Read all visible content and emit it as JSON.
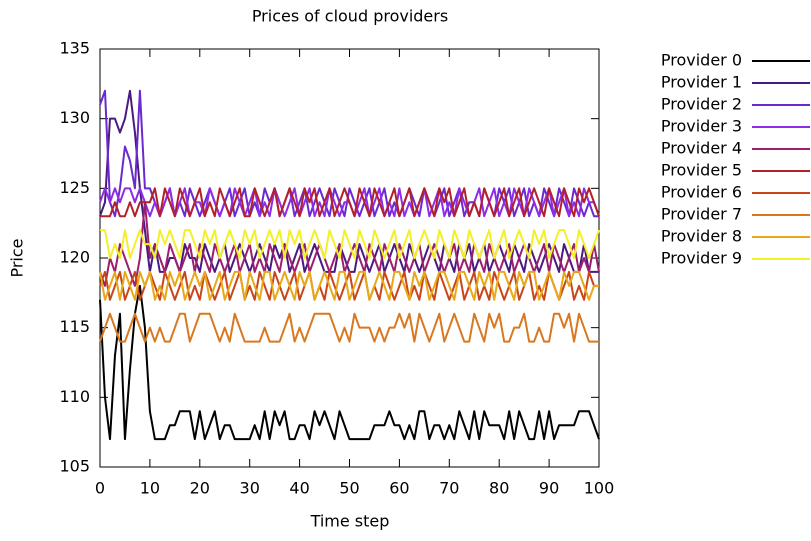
{
  "chart_data": {
    "type": "line",
    "title": "Prices of cloud providers",
    "xlabel": "Time step",
    "ylabel": "Price",
    "xlim": [
      0,
      100
    ],
    "ylim": [
      105,
      135
    ],
    "xticks": [
      0,
      10,
      20,
      30,
      40,
      50,
      60,
      70,
      80,
      90,
      100
    ],
    "yticks": [
      105,
      110,
      115,
      120,
      125,
      130,
      135
    ],
    "legend": "outside-right",
    "x": [
      0,
      1,
      2,
      3,
      4,
      5,
      6,
      7,
      8,
      9,
      10,
      11,
      12,
      13,
      14,
      15,
      16,
      17,
      18,
      19,
      20,
      21,
      22,
      23,
      24,
      25,
      26,
      27,
      28,
      29,
      30,
      31,
      32,
      33,
      34,
      35,
      36,
      37,
      38,
      39,
      40,
      41,
      42,
      43,
      44,
      45,
      46,
      47,
      48,
      49,
      50,
      51,
      52,
      53,
      54,
      55,
      56,
      57,
      58,
      59,
      60,
      61,
      62,
      63,
      64,
      65,
      66,
      67,
      68,
      69,
      70,
      71,
      72,
      73,
      74,
      75,
      76,
      77,
      78,
      79,
      80,
      81,
      82,
      83,
      84,
      85,
      86,
      87,
      88,
      89,
      90,
      91,
      92,
      93,
      94,
      95,
      96,
      97,
      98,
      99,
      100
    ],
    "series": [
      {
        "name": "Provider 0",
        "color": "#000000",
        "values": [
          117,
          110,
          107,
          113,
          116,
          107,
          112,
          116,
          118,
          115,
          109,
          107,
          107,
          107,
          108,
          108,
          109,
          109,
          109,
          107,
          109,
          107,
          108,
          109,
          107,
          108,
          108,
          107,
          107,
          107,
          107,
          108,
          107,
          109,
          107,
          109,
          108,
          109,
          107,
          107,
          108,
          108,
          107,
          109,
          108,
          109,
          108,
          107,
          109,
          108,
          107,
          107,
          107,
          107,
          107,
          108,
          108,
          108,
          109,
          108,
          108,
          107,
          108,
          107,
          109,
          109,
          107,
          108,
          108,
          107,
          108,
          107,
          109,
          108,
          107,
          109,
          107,
          109,
          108,
          108,
          108,
          107,
          109,
          107,
          109,
          108,
          107,
          107,
          109,
          107,
          109,
          107,
          108,
          108,
          108,
          108,
          109,
          109,
          109,
          108,
          107
        ]
      },
      {
        "name": "Provider 1",
        "color": "#4b1a80",
        "values": [
          123,
          124,
          130,
          130,
          129,
          130,
          132,
          129,
          125,
          122,
          119,
          121,
          119,
          119,
          120,
          120,
          119,
          121,
          120,
          120,
          119,
          121,
          120,
          119,
          120,
          121,
          119,
          120,
          121,
          120,
          119,
          120,
          121,
          120,
          119,
          121,
          120,
          121,
          119,
          120,
          121,
          119,
          120,
          121,
          120,
          119,
          119,
          119,
          121,
          120,
          119,
          119,
          121,
          120,
          119,
          120,
          121,
          119,
          120,
          121,
          120,
          119,
          121,
          120,
          119,
          120,
          121,
          120,
          119,
          121,
          120,
          119,
          121,
          120,
          121,
          119,
          120,
          121,
          119,
          120,
          121,
          120,
          119,
          121,
          120,
          119,
          121,
          120,
          119,
          120,
          121,
          120,
          119,
          121,
          120,
          119,
          119,
          121,
          119,
          119,
          119
        ]
      },
      {
        "name": "Provider 2",
        "color": "#6a2ad0",
        "values": [
          131,
          132,
          124,
          123,
          125,
          128,
          127,
          125,
          132,
          125,
          125,
          124,
          123,
          124,
          125,
          123,
          124,
          123,
          125,
          124,
          123,
          124,
          125,
          124,
          123,
          124,
          125,
          123,
          124,
          125,
          123,
          124,
          123,
          125,
          124,
          125,
          123,
          124,
          125,
          123,
          124,
          125,
          123,
          124,
          125,
          124,
          123,
          125,
          124,
          123,
          125,
          124,
          123,
          124,
          125,
          123,
          124,
          125,
          123,
          124,
          123,
          124,
          125,
          124,
          123,
          125,
          124,
          123,
          124,
          125,
          123,
          124,
          125,
          123,
          124,
          124,
          123,
          125,
          124,
          123,
          125,
          124,
          125,
          123,
          124,
          125,
          123,
          124,
          123,
          125,
          124,
          123,
          125,
          124,
          123,
          125,
          124,
          123,
          124,
          123,
          123
        ]
      },
      {
        "name": "Provider 3",
        "color": "#8e2ce8",
        "values": [
          124,
          125,
          124,
          125,
          124,
          125,
          125,
          124,
          125,
          124,
          123,
          124,
          123,
          124,
          125,
          123,
          124,
          125,
          123,
          124,
          124,
          123,
          125,
          124,
          123,
          124,
          123,
          125,
          124,
          123,
          124,
          125,
          123,
          124,
          123,
          125,
          124,
          123,
          124,
          125,
          123,
          124,
          125,
          123,
          124,
          123,
          125,
          124,
          123,
          124,
          124,
          123,
          124,
          125,
          123,
          124,
          125,
          123,
          124,
          123,
          125,
          123,
          124,
          123,
          124,
          125,
          123,
          124,
          125,
          123,
          124,
          123,
          125,
          124,
          123,
          124,
          125,
          123,
          124,
          125,
          123,
          124,
          123,
          125,
          124,
          123,
          125,
          124,
          123,
          124,
          125,
          123,
          124,
          125,
          123,
          124,
          123,
          125,
          124,
          124,
          123
        ]
      },
      {
        "name": "Provider 4",
        "color": "#9c1f6e",
        "values": [
          119,
          118,
          120,
          119,
          121,
          120,
          119,
          118,
          120,
          124,
          120,
          121,
          120,
          119,
          121,
          120,
          119,
          120,
          121,
          119,
          121,
          120,
          119,
          121,
          120,
          119,
          120,
          121,
          119,
          120,
          121,
          119,
          120,
          119,
          121,
          120,
          119,
          121,
          120,
          119,
          120,
          121,
          119,
          120,
          121,
          120,
          119,
          120,
          121,
          119,
          120,
          121,
          120,
          119,
          121,
          120,
          119,
          121,
          120,
          119,
          121,
          120,
          119,
          120,
          121,
          119,
          120,
          121,
          120,
          119,
          120,
          121,
          119,
          120,
          119,
          121,
          120,
          119,
          121,
          120,
          119,
          120,
          121,
          119,
          120,
          121,
          120,
          119,
          120,
          121,
          119,
          121,
          120,
          119,
          120,
          121,
          119,
          120,
          119,
          121,
          119
        ]
      },
      {
        "name": "Provider 5",
        "color": "#b4202a",
        "values": [
          123,
          123,
          123,
          124,
          123,
          123,
          124,
          123,
          124,
          124,
          124,
          125,
          123,
          125,
          124,
          123,
          125,
          124,
          123,
          124,
          125,
          123,
          124,
          123,
          125,
          124,
          123,
          124,
          125,
          123,
          123,
          125,
          124,
          123,
          124,
          125,
          123,
          124,
          125,
          124,
          123,
          125,
          124,
          125,
          123,
          124,
          125,
          123,
          124,
          125,
          124,
          123,
          125,
          124,
          123,
          125,
          124,
          123,
          124,
          125,
          123,
          124,
          125,
          123,
          124,
          125,
          124,
          123,
          125,
          124,
          125,
          123,
          124,
          125,
          123,
          124,
          123,
          125,
          124,
          123,
          124,
          125,
          123,
          124,
          125,
          123,
          124,
          125,
          124,
          123,
          125,
          124,
          123,
          125,
          124,
          123,
          125,
          124,
          125,
          124,
          123
        ]
      },
      {
        "name": "Provider 6",
        "color": "#c8461a",
        "values": [
          118,
          119,
          117,
          118,
          119,
          117,
          118,
          119,
          117,
          118,
          119,
          118,
          117,
          119,
          118,
          117,
          118,
          119,
          117,
          118,
          117,
          119,
          118,
          117,
          118,
          119,
          117,
          118,
          119,
          117,
          118,
          117,
          119,
          118,
          117,
          119,
          118,
          117,
          118,
          119,
          117,
          118,
          119,
          117,
          118,
          117,
          119,
          118,
          117,
          118,
          119,
          117,
          118,
          119,
          117,
          118,
          117,
          119,
          118,
          117,
          118,
          119,
          117,
          118,
          117,
          119,
          118,
          117,
          119,
          118,
          117,
          118,
          119,
          117,
          118,
          119,
          117,
          118,
          117,
          119,
          118,
          117,
          118,
          119,
          117,
          118,
          119,
          117,
          118,
          117,
          119,
          118,
          117,
          118,
          119,
          117,
          118,
          117,
          119,
          118,
          118
        ]
      },
      {
        "name": "Provider 7",
        "color": "#d9781e",
        "values": [
          114,
          115,
          116,
          115,
          114,
          114,
          115,
          116,
          115,
          114,
          115,
          114,
          115,
          114,
          114,
          115,
          116,
          116,
          114,
          115,
          116,
          116,
          116,
          115,
          114,
          115,
          114,
          116,
          115,
          114,
          114,
          114,
          114,
          115,
          114,
          114,
          114,
          115,
          116,
          114,
          115,
          114,
          115,
          116,
          116,
          116,
          116,
          115,
          114,
          115,
          114,
          116,
          115,
          115,
          115,
          114,
          115,
          114,
          115,
          115,
          116,
          115,
          116,
          114,
          116,
          115,
          114,
          115,
          116,
          114,
          115,
          116,
          115,
          114,
          114,
          116,
          115,
          114,
          116,
          115,
          116,
          114,
          114,
          115,
          115,
          116,
          114,
          114,
          115,
          114,
          114,
          116,
          116,
          115,
          116,
          114,
          116,
          115,
          114,
          114,
          114
        ]
      },
      {
        "name": "Provider 8",
        "color": "#e8a818",
        "values": [
          119,
          117,
          118,
          119,
          117,
          119,
          118,
          117,
          119,
          118,
          119,
          117,
          118,
          117,
          119,
          118,
          119,
          117,
          118,
          119,
          118,
          119,
          117,
          118,
          119,
          117,
          118,
          119,
          119,
          117,
          119,
          118,
          117,
          119,
          119,
          117,
          118,
          119,
          118,
          117,
          119,
          118,
          119,
          117,
          118,
          119,
          118,
          117,
          119,
          119,
          117,
          118,
          119,
          119,
          117,
          118,
          119,
          118,
          117,
          119,
          119,
          118,
          117,
          119,
          118,
          119,
          117,
          118,
          119,
          119,
          118,
          117,
          119,
          119,
          118,
          117,
          119,
          118,
          119,
          117,
          119,
          119,
          118,
          117,
          119,
          118,
          119,
          119,
          117,
          118,
          119,
          118,
          117,
          119,
          118,
          119,
          119,
          118,
          117,
          118,
          118
        ]
      },
      {
        "name": "Provider 9",
        "color": "#f4f028",
        "values": [
          122,
          122,
          120,
          121,
          120,
          122,
          120,
          121,
          122,
          121,
          121,
          120,
          122,
          121,
          122,
          121,
          120,
          122,
          122,
          121,
          120,
          122,
          121,
          122,
          120,
          121,
          122,
          121,
          120,
          122,
          121,
          122,
          120,
          121,
          122,
          121,
          122,
          120,
          122,
          121,
          122,
          120,
          121,
          122,
          121,
          120,
          122,
          121,
          120,
          122,
          121,
          120,
          122,
          121,
          120,
          122,
          121,
          120,
          121,
          122,
          120,
          121,
          122,
          120,
          121,
          122,
          121,
          120,
          122,
          121,
          120,
          122,
          121,
          120,
          122,
          121,
          120,
          121,
          122,
          120,
          121,
          122,
          120,
          121,
          122,
          121,
          120,
          122,
          121,
          122,
          120,
          121,
          122,
          122,
          121,
          120,
          122,
          121,
          120,
          121,
          122
        ]
      }
    ]
  }
}
